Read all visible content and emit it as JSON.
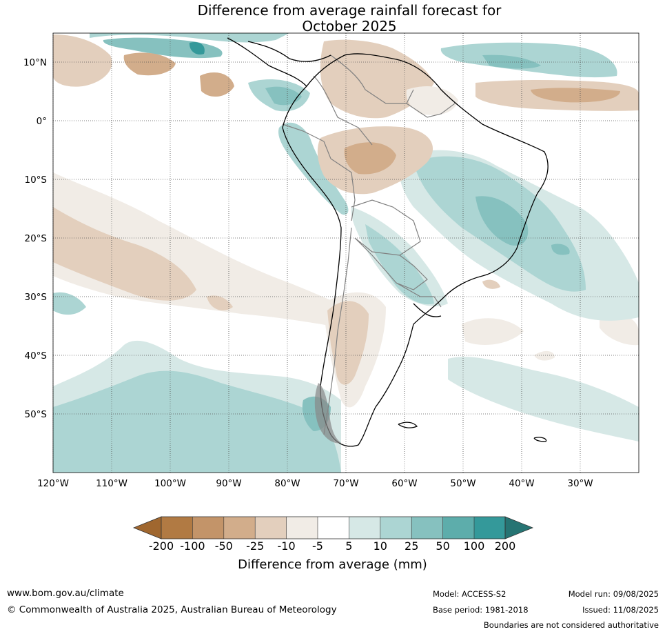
{
  "title": {
    "line1": "Difference from average rainfall forecast for",
    "line2": "October 2025"
  },
  "map": {
    "lat_labels": [
      "10°N",
      "0°",
      "10°S",
      "20°S",
      "30°S",
      "40°S",
      "50°S"
    ],
    "lon_labels": [
      "120°W",
      "110°W",
      "100°W",
      "90°W",
      "80°W",
      "70°W",
      "60°W",
      "50°W",
      "40°W",
      "30°W"
    ],
    "colors": {
      "dry_200": "#a0672f",
      "dry_100": "#b17a43",
      "dry_50": "#c39469",
      "dry_25": "#d2ad8b",
      "dry_10": "#e3cfbd",
      "dry_5": "#f1ece6",
      "neutral": "#ffffff",
      "wet_5": "#d6e8e6",
      "wet_10": "#acd5d3",
      "wet_25": "#86c1bf",
      "wet_50": "#5dadab",
      "wet_100": "#34999a",
      "wet_200": "#267473",
      "land_border": "#000000",
      "country_border": "#808080",
      "grid": "#555555"
    }
  },
  "legend": {
    "labels": [
      "-200",
      "-100",
      "-50",
      "-25",
      "-10",
      "-5",
      "5",
      "10",
      "25",
      "50",
      "100",
      "200"
    ],
    "title": "Difference from average (mm)"
  },
  "footer": {
    "website": "www.bom.gov.au/climate",
    "copyright": "© Commonwealth of Australia 2025, Australian Bureau of Meteorology",
    "model": "Model: ACCESS-S2",
    "base_period": "Base period: 1981-2018",
    "model_run": "Model run: 09/08/2025",
    "issued": "Issued: 11/08/2025",
    "boundaries_note": "Boundaries are not considered authoritative"
  }
}
